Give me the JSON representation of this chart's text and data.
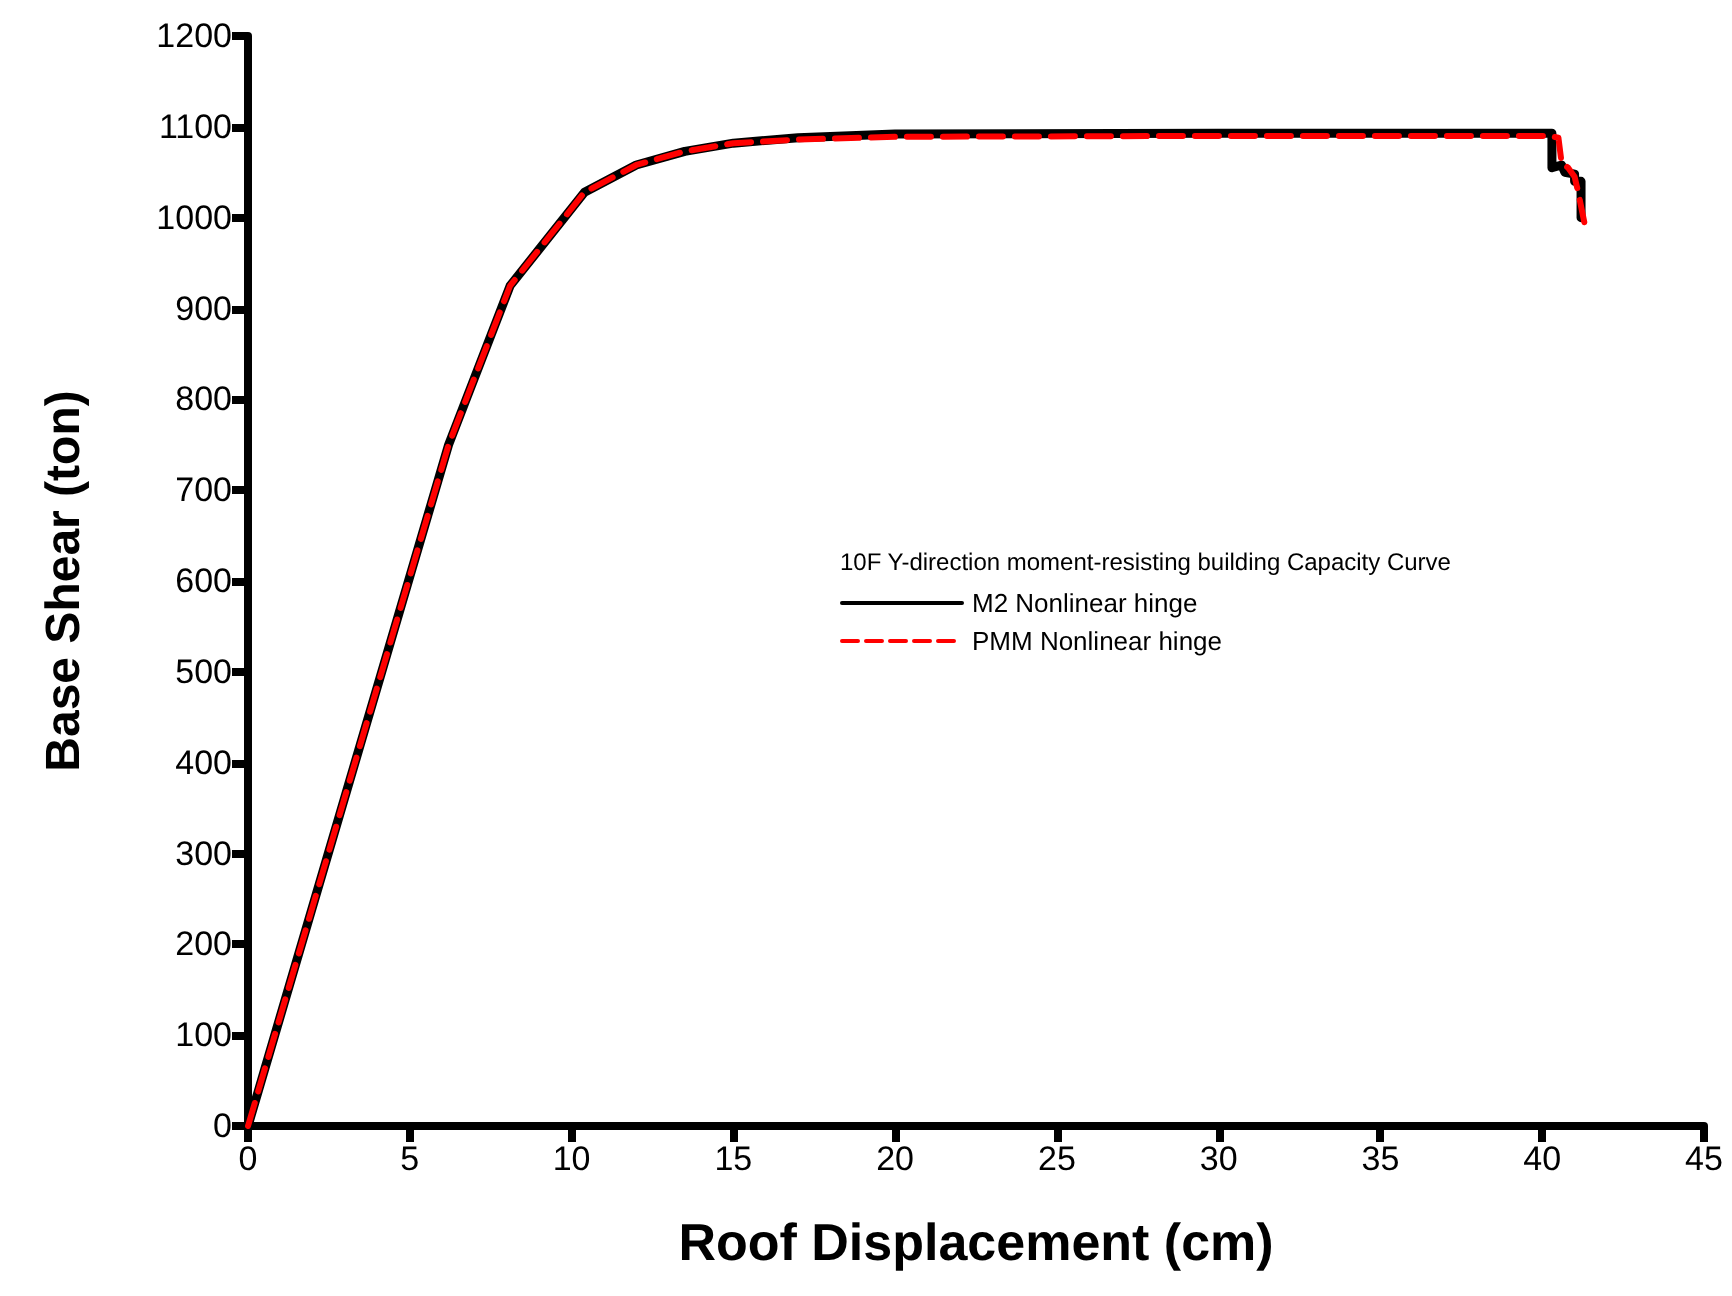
{
  "chart_data": {
    "type": "line",
    "xlabel": "Roof Displacement (cm)",
    "ylabel": "Base Shear (ton)",
    "legend_title": "10F Y-direction moment-resisting building Capacity Curve",
    "series": [
      {
        "name": "M2 Nonlinear hinge",
        "color": "#000000",
        "line_style": "solid",
        "x": [
          0,
          6.2,
          8.1,
          10.4,
          12,
          13.5,
          15,
          17,
          20,
          30,
          40.3,
          40.3,
          40.6,
          40.7,
          41.0,
          41.0,
          41.2,
          41.2
        ],
        "values": [
          0,
          750,
          925,
          1028,
          1058,
          1073,
          1082,
          1088,
          1092,
          1093,
          1093,
          1055,
          1058,
          1050,
          1048,
          1040,
          1040,
          1000
        ]
      },
      {
        "name": "PMM Nonlinear hinge",
        "color": "#ff0000",
        "line_style": "dashed",
        "x": [
          0,
          6.2,
          8.1,
          10.4,
          12,
          13.5,
          15,
          17,
          20,
          30,
          40.2,
          40.5,
          40.6,
          40.8,
          41.0,
          41.1,
          41.3
        ],
        "values": [
          0,
          750,
          925,
          1028,
          1058,
          1073,
          1082,
          1086,
          1089,
          1090,
          1090,
          1088,
          1060,
          1055,
          1045,
          1030,
          995
        ]
      }
    ],
    "xlim": [
      0,
      45
    ],
    "xticks": [
      0,
      5,
      10,
      15,
      20,
      25,
      30,
      35,
      40,
      45
    ],
    "ylim": [
      0,
      1200
    ],
    "yticks": [
      0,
      100,
      200,
      300,
      400,
      500,
      600,
      700,
      800,
      900,
      1000,
      1100,
      1200
    ],
    "grid": false,
    "legend": "right",
    "marker": "none"
  }
}
